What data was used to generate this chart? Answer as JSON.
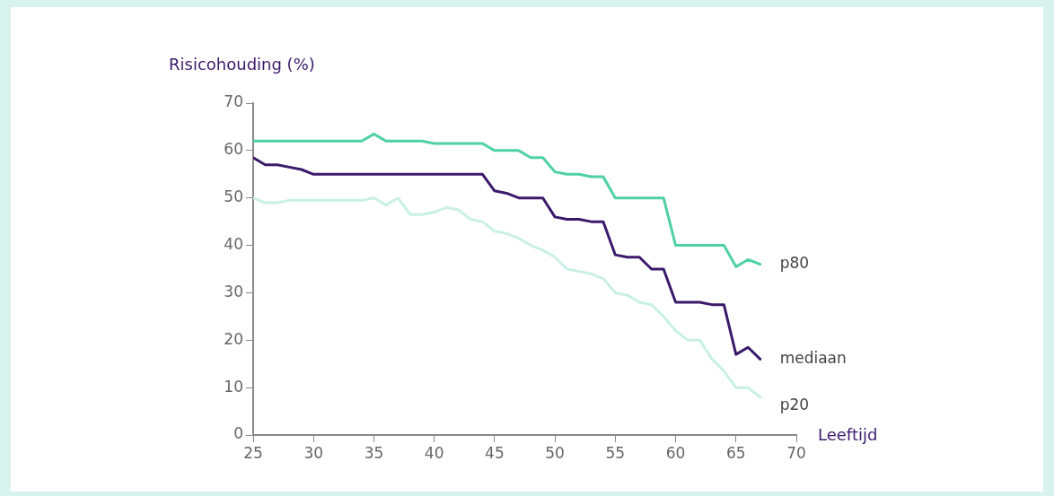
{
  "chart_data": {
    "type": "line",
    "ylabel": "Risicohouding (%)",
    "xlabel": "Leeftijd",
    "x": [
      25,
      26,
      27,
      28,
      29,
      30,
      31,
      32,
      33,
      34,
      35,
      36,
      37,
      38,
      39,
      40,
      41,
      42,
      43,
      44,
      45,
      46,
      47,
      48,
      49,
      50,
      51,
      52,
      53,
      54,
      55,
      56,
      57,
      58,
      59,
      60,
      61,
      62,
      63,
      64,
      65,
      66,
      67
    ],
    "series": [
      {
        "name": "p80",
        "color": "#4fd1a5",
        "values": [
          62,
          62,
          62,
          62,
          62,
          62,
          62,
          62,
          62,
          62,
          63.5,
          62,
          62,
          62,
          62,
          61.5,
          61.5,
          61.5,
          61.5,
          61.5,
          60,
          60,
          60,
          58.5,
          58.5,
          55.5,
          55,
          55,
          54.5,
          54.5,
          50,
          50,
          50,
          50,
          50,
          40,
          40,
          40,
          40,
          40,
          35.5,
          37,
          36
        ]
      },
      {
        "name": "mediaan",
        "color": "#3b1a6b",
        "values": [
          58.5,
          57,
          57,
          56.5,
          56,
          55,
          55,
          55,
          55,
          55,
          55,
          55,
          55,
          55,
          55,
          55,
          55,
          55,
          55,
          55,
          51.5,
          51,
          50,
          50,
          50,
          46,
          45.5,
          45.5,
          45,
          45,
          38,
          37.5,
          37.5,
          35,
          35,
          28,
          28,
          28,
          27.5,
          27.5,
          17,
          18.5,
          16
        ]
      },
      {
        "name": "p20",
        "color": "#c9f0e6",
        "values": [
          50,
          49,
          49,
          49.5,
          49.5,
          49.5,
          49.5,
          49.5,
          49.5,
          49.5,
          50,
          48.5,
          50,
          46.5,
          46.5,
          47,
          48,
          47.5,
          45.5,
          45,
          43,
          42.5,
          41.5,
          40,
          39,
          37.5,
          35,
          34.5,
          34,
          33,
          30,
          29.5,
          28,
          27.5,
          25,
          22,
          20,
          20,
          16,
          13.5,
          10,
          10,
          8
        ]
      }
    ],
    "xlim": [
      25,
      70
    ],
    "xticks": [
      25,
      30,
      35,
      40,
      45,
      50,
      55,
      60,
      65,
      70
    ],
    "ylim": [
      0,
      70
    ],
    "yticks": [
      0,
      10,
      20,
      30,
      40,
      50,
      60,
      70
    ],
    "grid": false,
    "legend": false,
    "marker": "none",
    "line_style": "solid"
  }
}
